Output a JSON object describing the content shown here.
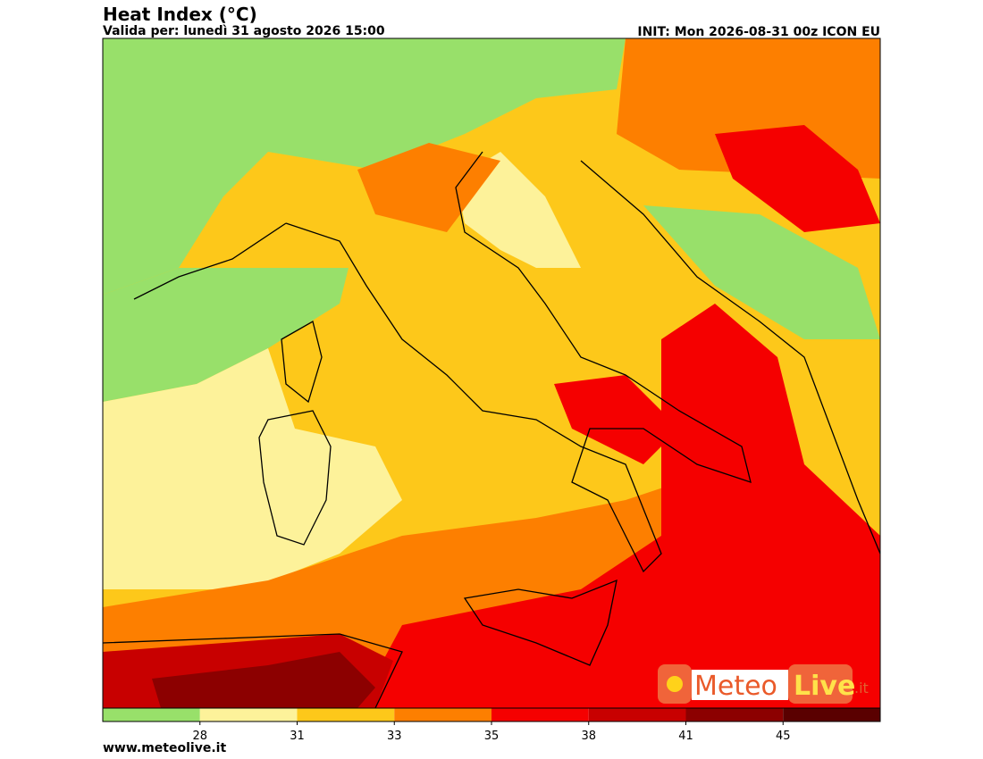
{
  "header": {
    "title": "Heat Index (°C)",
    "subtitle": "Valida per: lunedì 31 agosto 2026 15:00",
    "init": "INIT: Mon 2026-08-31 00z ICON EU"
  },
  "colorbar": {
    "ticks": [
      28,
      31,
      33,
      35,
      38,
      41,
      45
    ],
    "colors": [
      "#98e06a",
      "#fdf29a",
      "#fdc81a",
      "#fd7f00",
      "#f50000",
      "#c80000",
      "#8c0000",
      "#5a0000"
    ]
  },
  "logo": {
    "meteo": "Meteo",
    "live": "Live",
    "tld": ".it"
  },
  "footer": {
    "url": "www.meteolive.it"
  }
}
